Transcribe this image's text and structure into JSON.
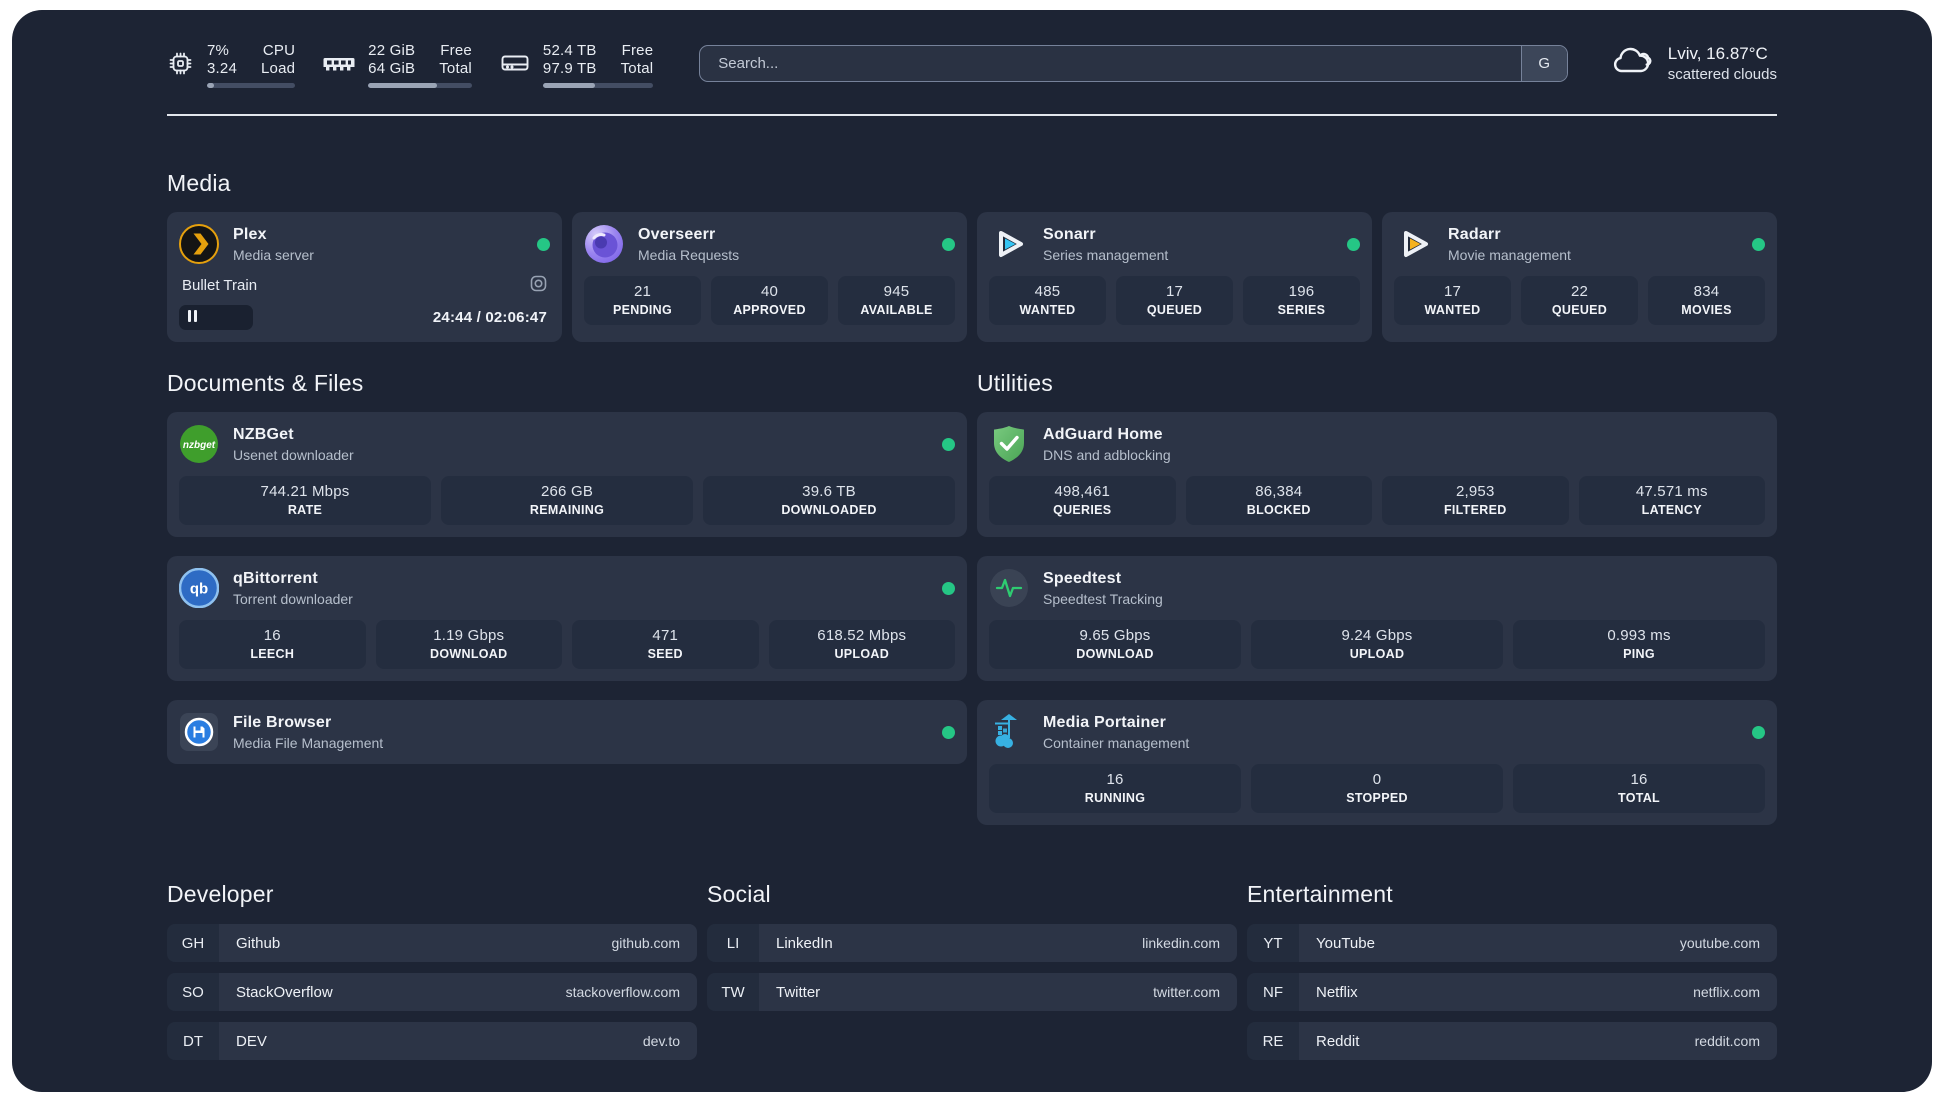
{
  "colors": {
    "status_green": "#25c685",
    "accent_amber": "#e5a00d",
    "accent_cyan": "#35c5f4"
  },
  "header": {
    "stats": [
      {
        "name": "cpu",
        "value1": "7%",
        "value2": "3.24",
        "label1": "CPU",
        "label2": "Load",
        "progress_pct": 8
      },
      {
        "name": "memory",
        "value1": "22 GiB",
        "value2": "64 GiB",
        "label1": "Free",
        "label2": "Total",
        "progress_pct": 66
      },
      {
        "name": "storage",
        "value1": "52.4 TB",
        "value2": "97.9 TB",
        "label1": "Free",
        "label2": "Total",
        "progress_pct": 47
      }
    ],
    "search": {
      "placeholder": "Search...",
      "engine_label": "G"
    },
    "weather": {
      "location_temp": "Lviv, 16.87°C",
      "condition": "scattered clouds"
    }
  },
  "media": {
    "title": "Media",
    "plex": {
      "title": "Plex",
      "subtitle": "Media server",
      "now_playing": "Bullet Train",
      "time_display": "24:44 / 02:06:47",
      "progress_pct": 20
    },
    "overseerr": {
      "title": "Overseerr",
      "subtitle": "Media Requests",
      "stats": [
        {
          "value": "21",
          "label": "PENDING"
        },
        {
          "value": "40",
          "label": "APPROVED"
        },
        {
          "value": "945",
          "label": "AVAILABLE"
        }
      ]
    },
    "sonarr": {
      "title": "Sonarr",
      "subtitle": "Series management",
      "stats": [
        {
          "value": "485",
          "label": "WANTED"
        },
        {
          "value": "17",
          "label": "QUEUED"
        },
        {
          "value": "196",
          "label": "SERIES"
        }
      ]
    },
    "radarr": {
      "title": "Radarr",
      "subtitle": "Movie management",
      "stats": [
        {
          "value": "17",
          "label": "WANTED"
        },
        {
          "value": "22",
          "label": "QUEUED"
        },
        {
          "value": "834",
          "label": "MOVIES"
        }
      ]
    }
  },
  "documents": {
    "title": "Documents & Files",
    "nzbget": {
      "title": "NZBGet",
      "subtitle": "Usenet downloader",
      "stats": [
        {
          "value": "744.21 Mbps",
          "label": "RATE"
        },
        {
          "value": "266 GB",
          "label": "REMAINING"
        },
        {
          "value": "39.6 TB",
          "label": "DOWNLOADED"
        }
      ]
    },
    "qbittorrent": {
      "title": "qBittorrent",
      "subtitle": "Torrent downloader",
      "stats": [
        {
          "value": "16",
          "label": "LEECH"
        },
        {
          "value": "1.19 Gbps",
          "label": "DOWNLOAD"
        },
        {
          "value": "471",
          "label": "SEED"
        },
        {
          "value": "618.52 Mbps",
          "label": "UPLOAD"
        }
      ]
    },
    "filebrowser": {
      "title": "File Browser",
      "subtitle": "Media File Management"
    }
  },
  "utilities": {
    "title": "Utilities",
    "adguard": {
      "title": "AdGuard Home",
      "subtitle": "DNS and adblocking",
      "stats": [
        {
          "value": "498,461",
          "label": "QUERIES"
        },
        {
          "value": "86,384",
          "label": "BLOCKED"
        },
        {
          "value": "2,953",
          "label": "FILTERED"
        },
        {
          "value": "47.571 ms",
          "label": "LATENCY"
        }
      ]
    },
    "speedtest": {
      "title": "Speedtest",
      "subtitle": "Speedtest Tracking",
      "stats": [
        {
          "value": "9.65 Gbps",
          "label": "DOWNLOAD"
        },
        {
          "value": "9.24 Gbps",
          "label": "UPLOAD"
        },
        {
          "value": "0.993 ms",
          "label": "PING"
        }
      ]
    },
    "portainer": {
      "title": "Media Portainer",
      "subtitle": "Container management",
      "stats": [
        {
          "value": "16",
          "label": "RUNNING"
        },
        {
          "value": "0",
          "label": "STOPPED"
        },
        {
          "value": "16",
          "label": "TOTAL"
        }
      ]
    }
  },
  "bookmarks": {
    "developer": {
      "title": "Developer",
      "links": [
        {
          "abbr": "GH",
          "name": "Github",
          "domain": "github.com"
        },
        {
          "abbr": "SO",
          "name": "StackOverflow",
          "domain": "stackoverflow.com"
        },
        {
          "abbr": "DT",
          "name": "DEV",
          "domain": "dev.to"
        }
      ]
    },
    "social": {
      "title": "Social",
      "links": [
        {
          "abbr": "LI",
          "name": "LinkedIn",
          "domain": "linkedin.com"
        },
        {
          "abbr": "TW",
          "name": "Twitter",
          "domain": "twitter.com"
        }
      ]
    },
    "entertainment": {
      "title": "Entertainment",
      "links": [
        {
          "abbr": "YT",
          "name": "YouTube",
          "domain": "youtube.com"
        },
        {
          "abbr": "NF",
          "name": "Netflix",
          "domain": "netflix.com"
        },
        {
          "abbr": "RE",
          "name": "Reddit",
          "domain": "reddit.com"
        }
      ]
    }
  }
}
